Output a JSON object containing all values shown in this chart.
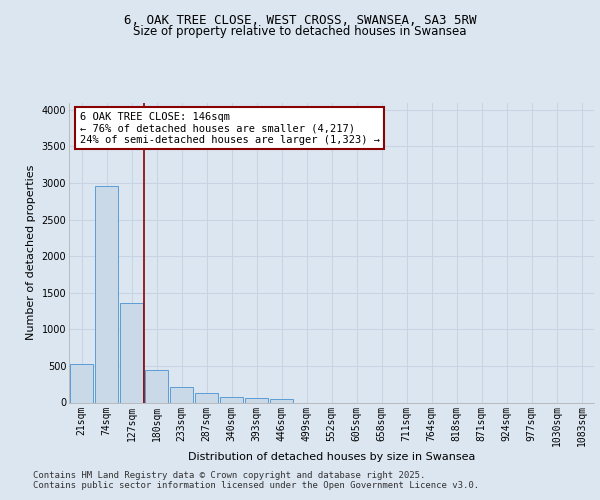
{
  "title_line1": "6, OAK TREE CLOSE, WEST CROSS, SWANSEA, SA3 5RW",
  "title_line2": "Size of property relative to detached houses in Swansea",
  "xlabel": "Distribution of detached houses by size in Swansea",
  "ylabel": "Number of detached properties",
  "bar_labels": [
    "21sqm",
    "74sqm",
    "127sqm",
    "180sqm",
    "233sqm",
    "287sqm",
    "340sqm",
    "393sqm",
    "446sqm",
    "499sqm",
    "552sqm",
    "605sqm",
    "658sqm",
    "711sqm",
    "764sqm",
    "818sqm",
    "871sqm",
    "924sqm",
    "977sqm",
    "1030sqm",
    "1083sqm"
  ],
  "bar_values": [
    520,
    2960,
    1360,
    450,
    210,
    130,
    80,
    55,
    50,
    0,
    0,
    0,
    0,
    0,
    0,
    0,
    0,
    0,
    0,
    0,
    0
  ],
  "bar_color": "#c9d9e8",
  "bar_edge_color": "#5b9bd5",
  "vline_color": "#8b0000",
  "vline_pos": 2.5,
  "annotation_text": "6 OAK TREE CLOSE: 146sqm\n← 76% of detached houses are smaller (4,217)\n24% of semi-detached houses are larger (1,323) →",
  "annotation_box_color": "#ffffff",
  "annotation_box_edge": "#8b0000",
  "ylim": [
    0,
    4100
  ],
  "yticks": [
    0,
    500,
    1000,
    1500,
    2000,
    2500,
    3000,
    3500,
    4000
  ],
  "background_color": "#dce6f1",
  "plot_bg_color": "#dce6f1",
  "footer_line1": "Contains HM Land Registry data © Crown copyright and database right 2025.",
  "footer_line2": "Contains public sector information licensed under the Open Government Licence v3.0.",
  "grid_color": "#c8d4e3",
  "title_fontsize": 9,
  "subtitle_fontsize": 8.5,
  "axis_label_fontsize": 8,
  "tick_fontsize": 7,
  "annotation_fontsize": 7.5,
  "footer_fontsize": 6.5
}
